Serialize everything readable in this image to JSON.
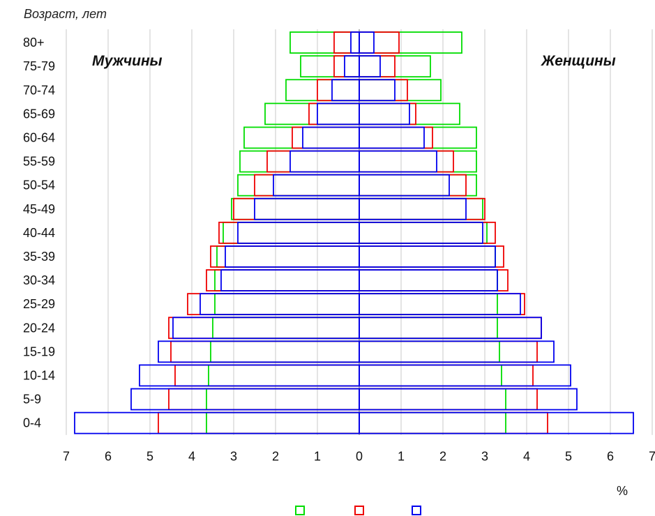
{
  "chart_data": {
    "type": "bar",
    "orientation": "horizontal",
    "subtype": "population-pyramid",
    "title": "Возраст, лет",
    "left_label": "Мужчины",
    "right_label": "Женщины",
    "unit_label": "%",
    "categories": [
      "80+",
      "75-79",
      "70-74",
      "65-69",
      "60-64",
      "55-59",
      "50-54",
      "45-49",
      "40-44",
      "35-39",
      "30-34",
      "25-29",
      "20-24",
      "15-19",
      "10-14",
      "5-9",
      "0-4"
    ],
    "x_ticks": [
      "7",
      "6",
      "5",
      "4",
      "3",
      "2",
      "1",
      "0",
      "1",
      "2",
      "3",
      "4",
      "5",
      "6",
      "7"
    ],
    "xlim": [
      -7,
      7
    ],
    "grid": true,
    "series": [
      {
        "color": "#00dd00",
        "men": [
          1.65,
          1.4,
          1.75,
          2.25,
          2.75,
          2.85,
          2.9,
          3.05,
          3.25,
          3.4,
          3.45,
          3.45,
          3.5,
          3.55,
          3.6,
          3.65,
          3.65
        ],
        "women": [
          2.45,
          1.7,
          1.95,
          2.4,
          2.8,
          2.8,
          2.8,
          2.95,
          3.05,
          3.25,
          3.3,
          3.3,
          3.3,
          3.35,
          3.4,
          3.5,
          3.5
        ]
      },
      {
        "color": "#ee0000",
        "men": [
          0.6,
          0.6,
          1.0,
          1.2,
          1.6,
          2.2,
          2.5,
          3.0,
          3.35,
          3.55,
          3.65,
          4.1,
          4.55,
          4.5,
          4.4,
          4.55,
          4.8
        ],
        "women": [
          0.95,
          0.85,
          1.15,
          1.35,
          1.75,
          2.25,
          2.55,
          3.0,
          3.25,
          3.45,
          3.55,
          3.95,
          4.35,
          4.25,
          4.15,
          4.25,
          4.5
        ]
      },
      {
        "color": "#0000ee",
        "men": [
          0.2,
          0.35,
          0.65,
          1.0,
          1.35,
          1.65,
          2.05,
          2.5,
          2.9,
          3.2,
          3.3,
          3.8,
          4.45,
          4.8,
          5.25,
          5.45,
          6.8
        ],
        "women": [
          0.35,
          0.5,
          0.85,
          1.2,
          1.55,
          1.85,
          2.15,
          2.55,
          2.95,
          3.25,
          3.3,
          3.85,
          4.35,
          4.65,
          5.05,
          5.2,
          6.55
        ]
      }
    ]
  }
}
